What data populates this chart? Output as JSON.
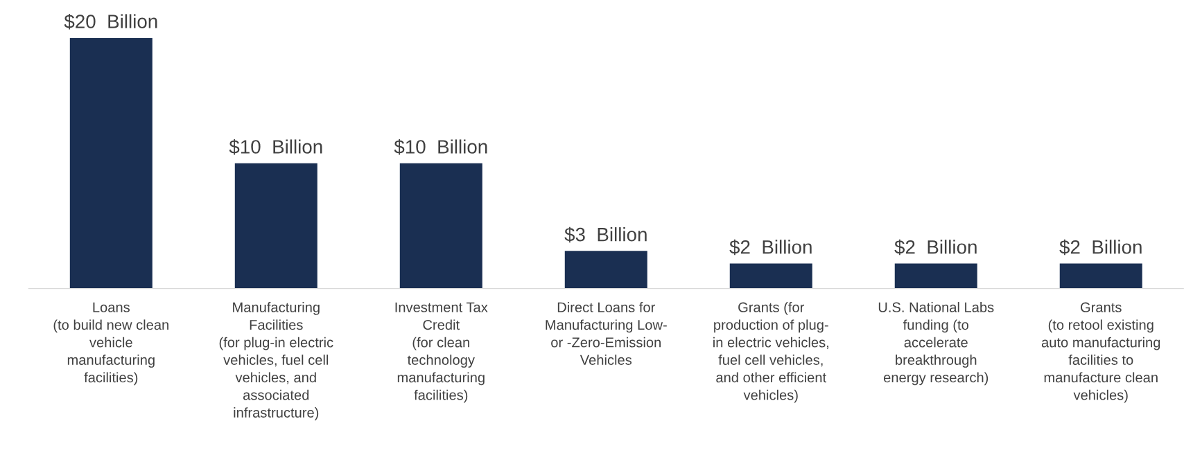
{
  "chart_data": {
    "type": "bar",
    "categories": [
      "Loans\n(to build new clean\nvehicle\nmanufacturing\nfacilities)",
      "Manufacturing\nFacilities\n(for plug-in electric\nvehicles, fuel cell\nvehicles, and\nassociated\ninfrastructure)",
      "Investment Tax\nCredit\n(for clean\ntechnology\nmanufacturing\nfacilities)",
      "Direct Loans for\nManufacturing Low-\nor -Zero-Emission\nVehicles",
      "Grants (for\nproduction of plug-\nin electric vehicles,\nfuel cell vehicles,\nand other efficient\nvehicles)",
      "U.S. National Labs\nfunding (to\naccelerate\nbreakthrough\nenergy research)",
      "Grants\n(to retool existing\nauto manufacturing\nfacilities to\nmanufacture clean\nvehicles)"
    ],
    "values": [
      20,
      10,
      10,
      3,
      2,
      2,
      2
    ],
    "value_labels": [
      "$20  Billion",
      "$10  Billion",
      "$10  Billion",
      "$3  Billion",
      "$2  Billion",
      "$2  Billion",
      "$2  Billion"
    ],
    "color": "#1a2f52",
    "grid": false,
    "legend": false
  }
}
